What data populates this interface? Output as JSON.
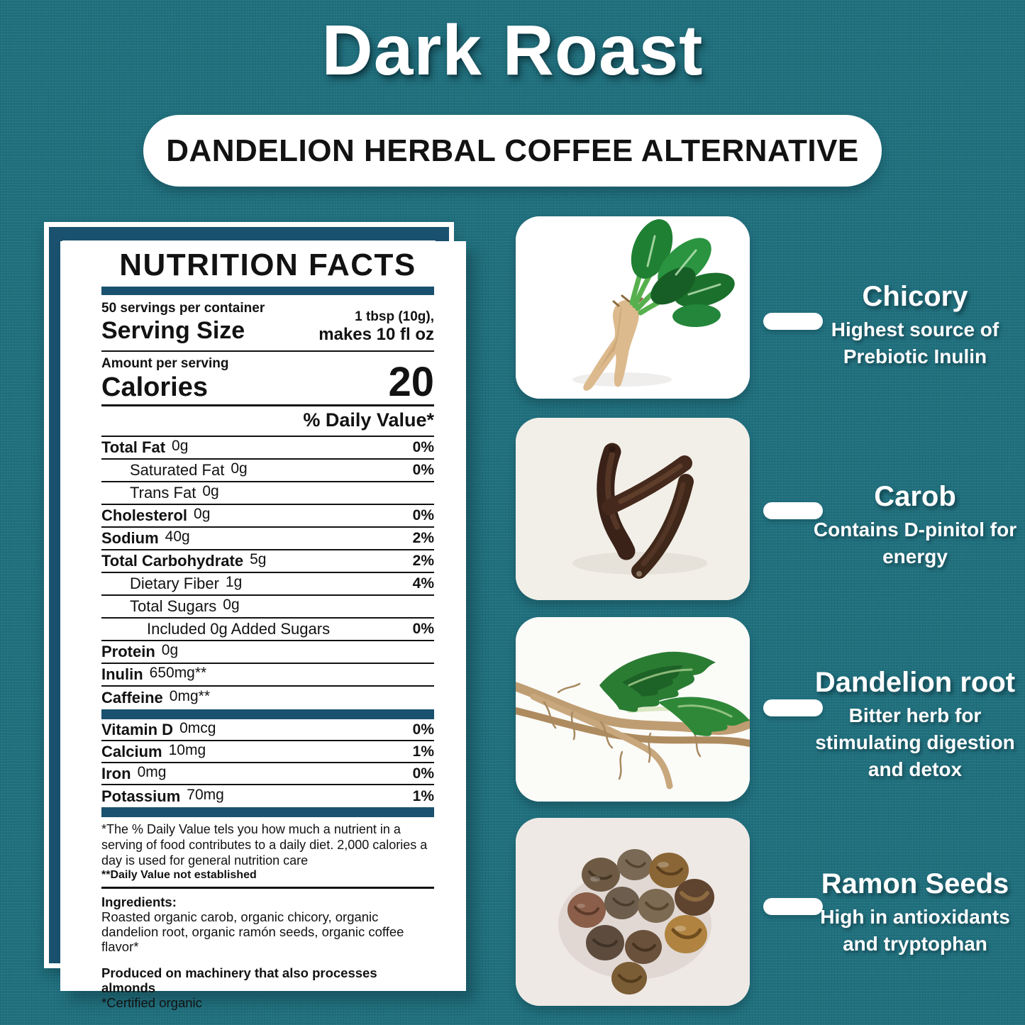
{
  "page": {
    "title": "Dark Roast",
    "subtitle": "DANDELION HERBAL COFFEE ALTERNATIVE"
  },
  "colors": {
    "background_teal": "#20707e",
    "accent_blue": "#19516f",
    "card_white": "#ffffff",
    "text_black": "#121212"
  },
  "nutrition": {
    "heading": "NUTRITION FACTS",
    "servings_line": "50 servings per container",
    "serving_size_label": "Serving Size",
    "serving_size_value_line1": "1 tbsp (10g),",
    "serving_size_value_line2": "makes 10 fl oz",
    "amount_label": "Amount per serving",
    "calories_label": "Calories",
    "calories_value": "20",
    "daily_value_header": "% Daily Value*",
    "rows": [
      {
        "label": "Total Fat",
        "value": "0g",
        "pct": "0%",
        "bold": true,
        "indent": 0
      },
      {
        "label": "Saturated Fat",
        "value": "0g",
        "pct": "0%",
        "bold": false,
        "indent": 1
      },
      {
        "label": "Trans Fat",
        "value": "0g",
        "pct": "",
        "bold": false,
        "indent": 1
      },
      {
        "label": "Cholesterol",
        "value": "0g",
        "pct": "0%",
        "bold": true,
        "indent": 0
      },
      {
        "label": "Sodium",
        "value": "40g",
        "pct": "2%",
        "bold": true,
        "indent": 0
      },
      {
        "label": "Total Carbohydrate",
        "value": "5g",
        "pct": "2%",
        "bold": true,
        "indent": 0
      },
      {
        "label": "Dietary Fiber",
        "value": "1g",
        "pct": "4%",
        "bold": false,
        "indent": 1
      },
      {
        "label": "Total Sugars",
        "value": "0g",
        "pct": "",
        "bold": false,
        "indent": 1
      },
      {
        "label": "Included 0g Added Sugars",
        "value": "",
        "pct": "0%",
        "bold": false,
        "indent": 2
      },
      {
        "label": "Protein",
        "value": "0g",
        "pct": "",
        "bold": true,
        "indent": 0
      },
      {
        "label": "Inulin",
        "value": "650mg**",
        "pct": "",
        "bold": true,
        "indent": 0
      },
      {
        "label": "Caffeine",
        "value": "0mg**",
        "pct": "",
        "bold": true,
        "indent": 0
      }
    ],
    "mineral_rows": [
      {
        "label": "Vitamin D",
        "value": "0mcg",
        "pct": "0%"
      },
      {
        "label": "Calcium",
        "value": "10mg",
        "pct": "1%"
      },
      {
        "label": "Iron",
        "value": "0mg",
        "pct": "0%"
      },
      {
        "label": "Potassium",
        "value": "70mg",
        "pct": "1%"
      }
    ],
    "footnote_line1": "*The %  Daily Value tels you how much a nutrient in a serving of food contributes to a daily diet. 2,000 calories a day is used for general nutrition care",
    "footnote_line2": "**Daily Value not established",
    "ingredients_label": "Ingredients:",
    "ingredients_text": "Roasted organic carob, organic chicory, organic dandelion root, organic ramón seeds, organic coffee flavor*",
    "allergen_text": "Produced on machinery that also processes almonds",
    "certified_text": "*Certified organic"
  },
  "ingredients_panel": [
    {
      "name": "Chicory",
      "description": "Highest source of Prebiotic Inulin",
      "image": "chicory-root-photo"
    },
    {
      "name": "Carob",
      "description": "Contains D-pinitol for energy",
      "image": "carob-pods-photo"
    },
    {
      "name": "Dandelion root",
      "description": "Bitter herb for stimulating digestion and detox",
      "image": "dandelion-root-photo"
    },
    {
      "name": "Ramon Seeds",
      "description": "High in antioxidants and tryptophan",
      "image": "ramon-seeds-photo"
    }
  ]
}
